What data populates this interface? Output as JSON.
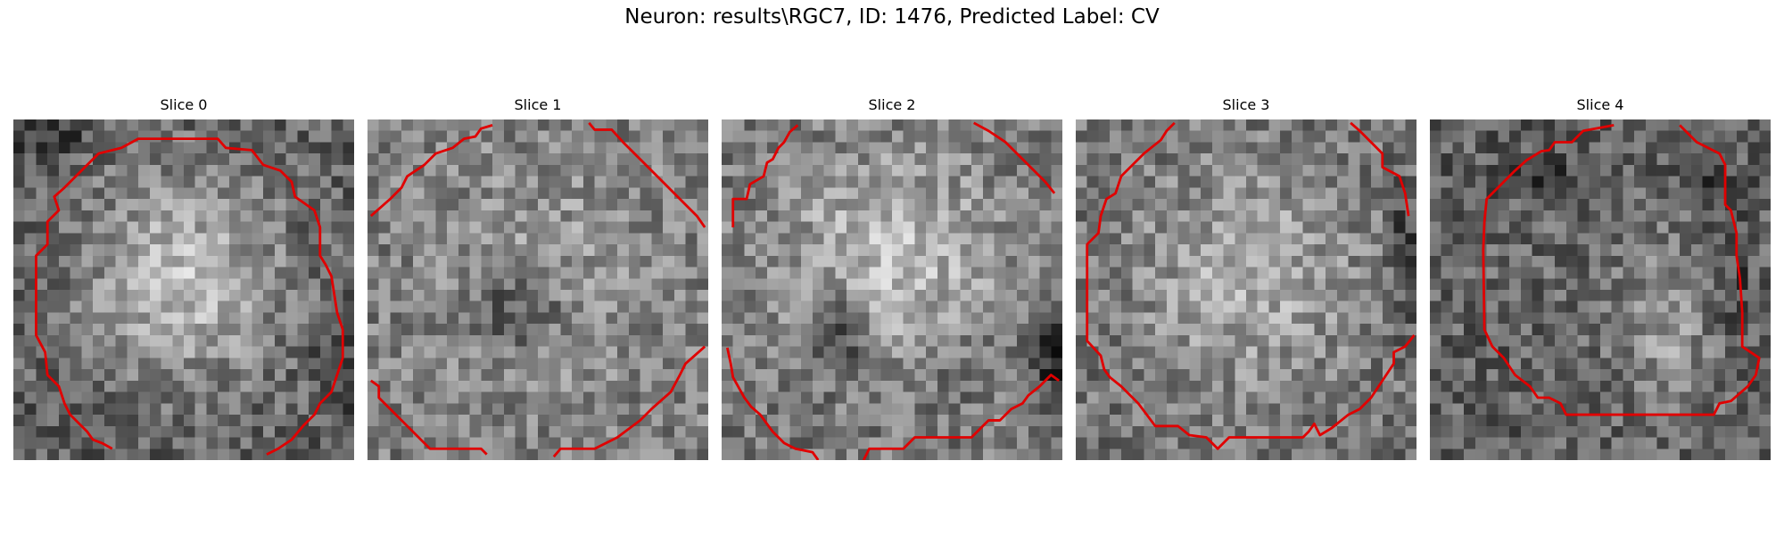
{
  "figure": {
    "title": "Neuron: results\\RGC7, ID: 1476, Predicted Label: CV"
  },
  "panels": [
    {
      "title": "Slice 0",
      "image": "grayscale microscopy slice, bright round cell body",
      "contour_color": "#e00000"
    },
    {
      "title": "Slice 1",
      "image": "grayscale microscopy slice, dark central region",
      "contour_color": "#e00000"
    },
    {
      "title": "Slice 2",
      "image": "grayscale microscopy slice, bright cell with dark spot",
      "contour_color": "#e00000"
    },
    {
      "title": "Slice 3",
      "image": "grayscale microscopy slice, bright cell body",
      "contour_color": "#e00000"
    },
    {
      "title": "Slice 4",
      "image": "grayscale microscopy slice, dark ring with bright center",
      "contour_color": "#e00000"
    }
  ]
}
